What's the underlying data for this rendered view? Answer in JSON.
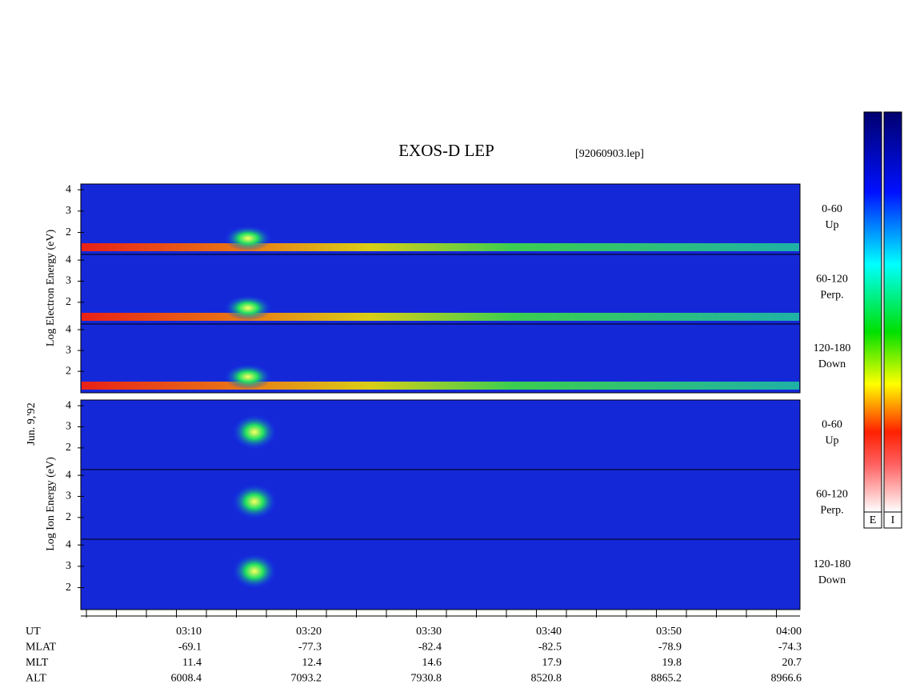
{
  "title": "EXOS-D LEP",
  "file": "[92060903.lep]",
  "date": "Jun. 9,'92",
  "electron": {
    "axis_label": "Log Electron Energy (eV)",
    "ylim": [
      0.97,
      4.27
    ],
    "panels": [
      {
        "label": "0-60",
        "sublabel": "Up",
        "yticks": [
          2,
          3,
          4
        ]
      },
      {
        "label": "60-120",
        "sublabel": "Perp.",
        "yticks": [
          2,
          3,
          4
        ]
      },
      {
        "label": "120-180",
        "sublabel": "Down",
        "yticks": [
          2,
          3,
          4
        ]
      }
    ]
  },
  "ion": {
    "axis_label": "Log Ion Energy (eV)",
    "ylim": [
      0.97,
      4.27
    ],
    "panels": [
      {
        "label": "0-60",
        "sublabel": "Up",
        "yticks": [
          2,
          3,
          4
        ]
      },
      {
        "label": "60-120",
        "sublabel": "Perp.",
        "yticks": [
          2,
          3,
          4
        ]
      },
      {
        "label": "120-180",
        "sublabel": "Down",
        "yticks": [
          2,
          3,
          4
        ]
      }
    ]
  },
  "footer": {
    "rows": [
      {
        "label": "UT",
        "values": [
          "03:10",
          "03:20",
          "03:30",
          "03:40",
          "03:50",
          "04:00"
        ]
      },
      {
        "label": "MLAT",
        "values": [
          "-69.1",
          "-77.3",
          "-82.4",
          "-82.5",
          "-78.9",
          "-74.3"
        ]
      },
      {
        "label": "MLT",
        "values": [
          "11.4",
          "12.4",
          "14.6",
          "17.9",
          "19.8",
          "20.7"
        ]
      },
      {
        "label": "ALT",
        "values": [
          "6008.4",
          "7093.2",
          "7930.8",
          "8520.8",
          "8865.2",
          "8966.6"
        ]
      }
    ]
  },
  "colorbars": [
    "E",
    "I"
  ]
}
